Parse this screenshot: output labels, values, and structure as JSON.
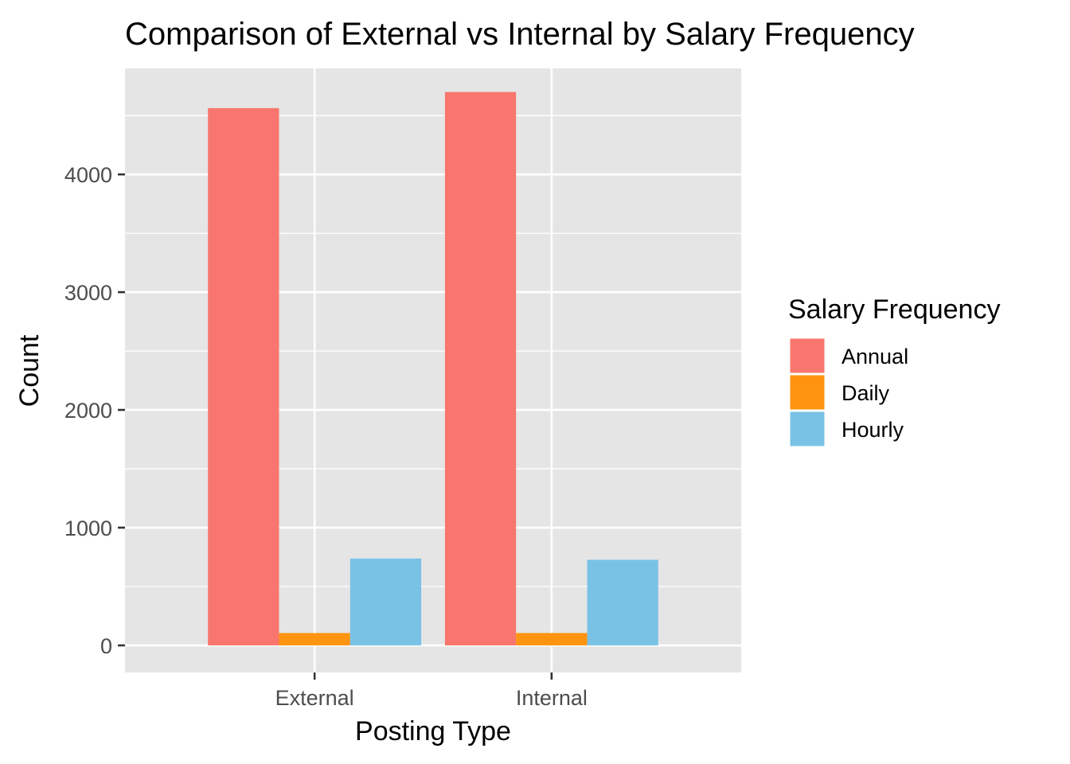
{
  "chart_data": {
    "type": "bar",
    "title": "Comparison of External vs Internal by Salary Frequency",
    "xlabel": "Posting Type",
    "ylabel": "Count",
    "categories": [
      "External",
      "Internal"
    ],
    "series": [
      {
        "name": "Annual",
        "color": "#F8766D",
        "values": [
          4563,
          4700
        ]
      },
      {
        "name": "Daily",
        "color": "#FF9410",
        "values": [
          105,
          105
        ]
      },
      {
        "name": "Hourly",
        "color": "#7AC2E5",
        "values": [
          738,
          727
        ]
      }
    ],
    "ylim": [
      -230,
      4900
    ],
    "yticks": [
      0,
      1000,
      2000,
      3000,
      4000
    ],
    "ytick_labels": [
      "0",
      "1000",
      "2000",
      "3000",
      "4000"
    ],
    "legend_title": "Salary Frequency",
    "legend_position": "right",
    "grid": true,
    "panel_background": "#E5E5E5",
    "grid_color": "#FFFFFF"
  }
}
